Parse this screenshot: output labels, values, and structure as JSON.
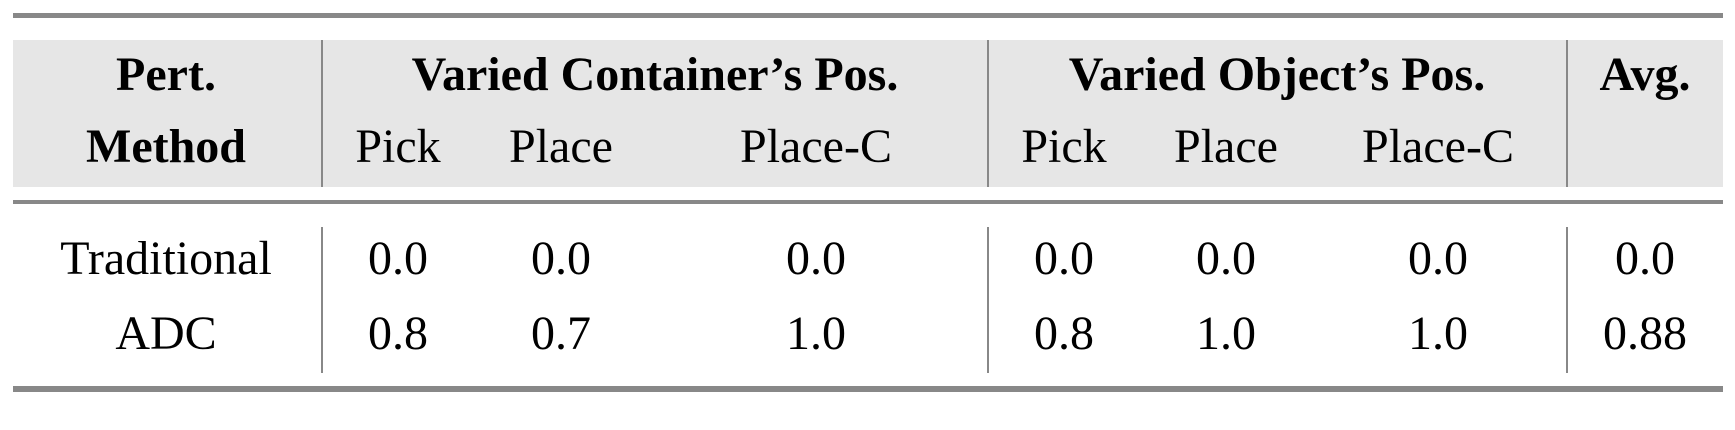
{
  "table": {
    "header": {
      "row1": [
        "Pert.",
        "Varied Container’s Pos.",
        "Varied Object’s Pos.",
        "Avg."
      ],
      "row2": [
        "Method",
        "Pick",
        "Place",
        "Place-C",
        "Pick",
        "Place",
        "Place-C",
        ""
      ]
    },
    "rows": [
      {
        "method": "Traditional",
        "values": [
          "0.0",
          "0.0",
          "0.0",
          "0.0",
          "0.0",
          "0.0",
          "0.0"
        ]
      },
      {
        "method": "ADC",
        "values": [
          "0.8",
          "0.7",
          "1.0",
          "0.8",
          "1.0",
          "1.0",
          "0.88"
        ]
      }
    ]
  },
  "colors": {
    "header_shade": "#e6e6e6",
    "rule": "#888888"
  }
}
